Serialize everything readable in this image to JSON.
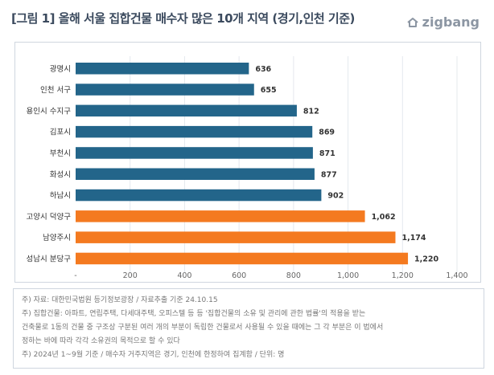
{
  "header": {
    "title": "[그림 1] 올해 서울 집합건물 매수자 많은 10개 지역 (경기,인천 기준)",
    "logo_text": "zigbang"
  },
  "colors": {
    "primary_bar": "#23658a",
    "highlight_bar": "#f47a20",
    "frame_border": "#cfd6df",
    "grid": "#e4e8ee"
  },
  "chart_data": {
    "type": "bar",
    "orientation": "horizontal",
    "categories": [
      "광명시",
      "인천 서구",
      "용인시 수지구",
      "김포시",
      "부천시",
      "화성시",
      "하남시",
      "고양시 덕양구",
      "남양주시",
      "성남시 분당구"
    ],
    "values": [
      636,
      655,
      812,
      869,
      871,
      877,
      902,
      1062,
      1174,
      1220
    ],
    "value_labels": [
      "636",
      "655",
      "812",
      "869",
      "871",
      "877",
      "902",
      "1,062",
      "1,174",
      "1,220"
    ],
    "highlight": [
      false,
      false,
      false,
      false,
      false,
      false,
      false,
      true,
      true,
      true
    ],
    "xlim": [
      0,
      1400
    ],
    "xticks": [
      0,
      200,
      400,
      600,
      800,
      1000,
      1200,
      1400
    ],
    "xtick_labels": [
      "-",
      "200",
      "400",
      "600",
      "800",
      "1,000",
      "1,200",
      "1,400"
    ],
    "grid": true,
    "title": "",
    "xlabel": "",
    "ylabel": ""
  },
  "notes": [
    "주) 자료: 대한민국법원 등기정보광장 / 자료추출 기준 24.10.15",
    "주) 집합건물: 아파트, 연립주택, 다세대주택, 오피스텔 등 등 '집합건물의 소유 및 관리에 관한 법률'의 적용을 받는",
    "건축물로 1동의 건물 중 구조상 구분된 여러 개의 부분이 독립한 건물로서 사용될 수 있을 때에는 그 각 부분은 이 법에서",
    "정하는 바에 따라 각각 소유권의 목적으로 할 수 있다",
    "주) 2024년 1~9월 기준 / 매수자 거주지역은 경기, 인천에 한정하여 집계함 / 단위: 명"
  ]
}
